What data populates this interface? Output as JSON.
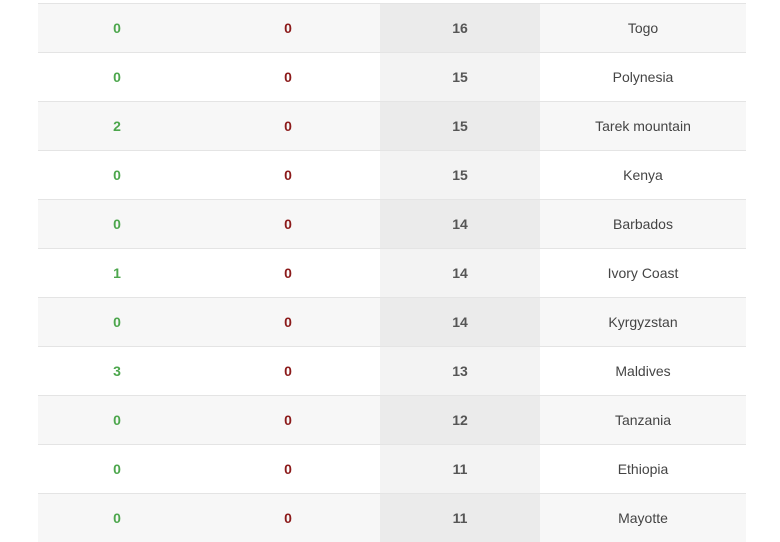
{
  "colors": {
    "positive": "#4ca64c",
    "negative": "#8b1a1a"
  },
  "rows": [
    {
      "a": "0",
      "b": "0",
      "count": "16",
      "name": "Togo"
    },
    {
      "a": "0",
      "b": "0",
      "count": "15",
      "name": "Polynesia"
    },
    {
      "a": "2",
      "b": "0",
      "count": "15",
      "name": "Tarek mountain"
    },
    {
      "a": "0",
      "b": "0",
      "count": "15",
      "name": "Kenya"
    },
    {
      "a": "0",
      "b": "0",
      "count": "14",
      "name": "Barbados"
    },
    {
      "a": "1",
      "b": "0",
      "count": "14",
      "name": "Ivory Coast"
    },
    {
      "a": "0",
      "b": "0",
      "count": "14",
      "name": "Kyrgyzstan"
    },
    {
      "a": "3",
      "b": "0",
      "count": "13",
      "name": "Maldives"
    },
    {
      "a": "0",
      "b": "0",
      "count": "12",
      "name": "Tanzania"
    },
    {
      "a": "0",
      "b": "0",
      "count": "11",
      "name": "Ethiopia"
    },
    {
      "a": "0",
      "b": "0",
      "count": "11",
      "name": "Mayotte"
    }
  ]
}
